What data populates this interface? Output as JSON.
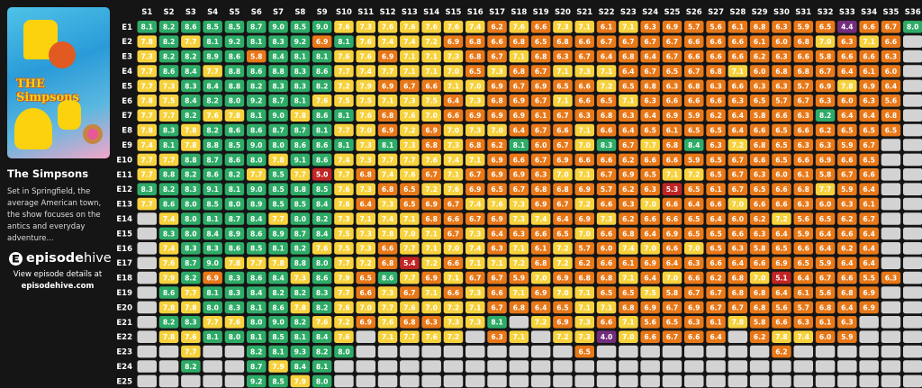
{
  "show": {
    "title": "The Simpsons",
    "description": "Set in Springfield, the average American town, the show focuses on the antics and everyday adventure...",
    "poster_logo": "THE Simpsons"
  },
  "brand": {
    "part1": "episode",
    "part2": "hive",
    "cta_line1": "View episode details at",
    "cta_line2": "episodehive.com"
  },
  "colors": {
    "green": "#2eab67",
    "yellow": "#f7d23d",
    "orange": "#e87818",
    "red": "#c22525",
    "purple": "#742d7d",
    "empty": "#d3d3d3",
    "background": "#151515"
  },
  "chart_data": {
    "type": "heatmap",
    "x_labels": [
      "S1",
      "S2",
      "S3",
      "S4",
      "S5",
      "S6",
      "S7",
      "S8",
      "S9",
      "S10",
      "S11",
      "S12",
      "S13",
      "S14",
      "S15",
      "S16",
      "S17",
      "S18",
      "S19",
      "S20",
      "S21",
      "S22",
      "S23",
      "S24",
      "S25",
      "S26",
      "S27",
      "S28",
      "S29",
      "S30",
      "S31",
      "S32",
      "S33",
      "S34",
      "S35",
      "S36"
    ],
    "y_labels": [
      "E1",
      "E2",
      "E3",
      "E4",
      "E5",
      "E6",
      "E7",
      "E8",
      "E9",
      "E10",
      "E11",
      "E12",
      "E13",
      "E14",
      "E15",
      "E16",
      "E17",
      "E18",
      "E19",
      "E20",
      "E21",
      "E22",
      "E23",
      "E24",
      "E25"
    ],
    "matrix": [
      [
        8.1,
        8.2,
        8.6,
        8.5,
        8.5,
        8.7,
        9.0,
        8.5,
        9.0,
        7.6,
        7.3,
        7.6,
        7.6,
        7.6,
        7.6,
        7.4,
        6.2,
        7.6,
        6.6,
        7.3,
        7.1,
        6.1,
        7.1,
        6.3,
        6.9,
        5.7,
        5.6,
        6.1,
        6.8,
        6.3,
        5.9,
        6.5,
        4.4,
        6.6,
        6.7,
        8.0
      ],
      [
        7.8,
        8.2,
        7.7,
        8.1,
        9.2,
        8.1,
        8.3,
        9.2,
        6.9,
        8.1,
        7.6,
        7.4,
        7.4,
        7.2,
        6.9,
        6.8,
        6.6,
        6.8,
        6.5,
        6.8,
        6.6,
        6.7,
        6.7,
        6.7,
        6.7,
        6.6,
        6.6,
        6.6,
        6.1,
        6.0,
        6.8,
        7.0,
        6.3,
        7.1,
        6.6,
        null
      ],
      [
        7.3,
        8.2,
        8.2,
        8.9,
        8.6,
        5.8,
        8.4,
        8.1,
        8.1,
        7.6,
        7.6,
        6.9,
        7.1,
        7.1,
        7.3,
        6.8,
        6.7,
        7.1,
        6.8,
        6.3,
        6.7,
        6.4,
        6.8,
        6.4,
        6.7,
        6.6,
        6.6,
        6.6,
        6.2,
        6.3,
        6.6,
        5.8,
        6.6,
        6.6,
        6.3,
        null
      ],
      [
        7.7,
        8.6,
        8.4,
        7.7,
        8.8,
        8.6,
        8.8,
        8.3,
        8.6,
        7.7,
        7.4,
        7.7,
        7.1,
        7.1,
        7.0,
        6.5,
        7.3,
        6.8,
        6.7,
        7.1,
        7.3,
        7.1,
        6.4,
        6.7,
        6.5,
        6.7,
        6.8,
        7.1,
        6.0,
        6.8,
        6.8,
        6.7,
        6.4,
        6.1,
        6.0,
        null
      ],
      [
        7.7,
        7.3,
        8.3,
        8.4,
        8.8,
        8.2,
        8.3,
        8.3,
        8.2,
        7.2,
        7.9,
        6.9,
        6.7,
        6.6,
        7.1,
        7.0,
        6.9,
        6.7,
        6.9,
        6.5,
        6.6,
        7.2,
        6.5,
        6.8,
        6.3,
        6.8,
        6.3,
        6.6,
        6.3,
        6.3,
        5.7,
        6.9,
        7.8,
        6.9,
        6.4,
        null
      ],
      [
        7.8,
        7.5,
        8.4,
        8.2,
        8.0,
        9.2,
        8.7,
        8.1,
        7.6,
        7.5,
        7.5,
        7.1,
        7.3,
        7.5,
        6.4,
        7.3,
        6.8,
        6.9,
        6.7,
        7.1,
        6.6,
        6.5,
        7.1,
        6.3,
        6.6,
        6.6,
        6.6,
        6.3,
        6.5,
        5.7,
        6.7,
        6.3,
        6.0,
        6.3,
        5.6,
        null
      ],
      [
        7.7,
        7.7,
        8.2,
        7.6,
        7.8,
        8.1,
        9.0,
        7.8,
        8.6,
        8.1,
        7.6,
        6.8,
        7.6,
        7.0,
        6.6,
        6.9,
        6.9,
        6.9,
        6.1,
        6.7,
        6.3,
        6.8,
        6.3,
        6.4,
        6.9,
        5.9,
        6.2,
        6.4,
        5.8,
        6.6,
        6.3,
        8.2,
        6.4,
        6.4,
        6.8,
        null
      ],
      [
        7.8,
        8.3,
        7.8,
        8.2,
        8.6,
        8.6,
        8.7,
        8.7,
        8.1,
        7.7,
        7.0,
        6.9,
        7.2,
        6.9,
        7.0,
        7.3,
        7.0,
        6.4,
        6.7,
        6.6,
        7.1,
        6.6,
        6.4,
        6.5,
        6.1,
        6.5,
        6.5,
        6.4,
        6.6,
        6.5,
        6.6,
        6.2,
        6.5,
        6.5,
        6.5,
        null
      ],
      [
        7.4,
        8.1,
        7.8,
        8.8,
        8.5,
        9.0,
        8.0,
        8.6,
        8.6,
        8.1,
        7.3,
        8.1,
        7.3,
        6.8,
        7.3,
        6.8,
        6.2,
        8.1,
        6.0,
        6.7,
        7.0,
        8.3,
        6.7,
        7.7,
        6.8,
        8.4,
        6.3,
        7.2,
        6.8,
        6.5,
        6.3,
        6.3,
        5.9,
        6.7,
        null,
        null
      ],
      [
        7.7,
        7.7,
        8.8,
        8.7,
        8.6,
        8.0,
        7.8,
        9.1,
        8.6,
        7.4,
        7.3,
        7.7,
        7.7,
        7.6,
        7.4,
        7.1,
        6.9,
        6.6,
        6.7,
        6.9,
        6.6,
        6.6,
        6.2,
        6.6,
        6.6,
        5.9,
        6.5,
        6.7,
        6.6,
        6.5,
        6.6,
        6.9,
        6.6,
        6.5,
        null,
        null
      ],
      [
        7.7,
        8.8,
        8.2,
        8.6,
        8.2,
        7.7,
        8.5,
        7.7,
        5.0,
        7.7,
        6.8,
        7.4,
        7.6,
        6.7,
        7.1,
        6.7,
        6.9,
        6.9,
        6.3,
        7.0,
        7.1,
        6.7,
        6.9,
        6.5,
        7.1,
        7.2,
        6.5,
        6.7,
        6.3,
        6.0,
        6.1,
        5.8,
        6.7,
        6.6,
        null,
        null
      ],
      [
        8.3,
        8.2,
        8.3,
        9.1,
        8.1,
        9.0,
        8.5,
        8.8,
        8.5,
        7.6,
        7.3,
        6.8,
        6.5,
        7.2,
        7.6,
        6.9,
        6.5,
        6.7,
        6.8,
        6.8,
        6.9,
        5.7,
        6.2,
        6.3,
        5.3,
        6.5,
        6.1,
        6.7,
        6.5,
        6.6,
        6.8,
        7.7,
        5.9,
        6.4,
        null,
        null
      ],
      [
        7.7,
        8.6,
        8.0,
        8.5,
        8.0,
        8.9,
        8.5,
        8.5,
        8.4,
        7.6,
        6.4,
        7.3,
        6.5,
        6.9,
        6.7,
        7.4,
        7.6,
        7.3,
        6.9,
        6.7,
        7.2,
        6.6,
        6.3,
        7.0,
        6.6,
        6.4,
        6.6,
        7.0,
        6.6,
        6.6,
        6.3,
        6.0,
        6.3,
        6.1,
        null,
        null
      ],
      [
        null,
        7.4,
        8.0,
        8.1,
        8.7,
        8.4,
        7.7,
        8.0,
        8.2,
        7.3,
        7.1,
        7.4,
        7.1,
        6.8,
        6.6,
        6.7,
        6.9,
        7.3,
        7.4,
        6.4,
        6.9,
        7.3,
        6.2,
        6.6,
        6.6,
        6.5,
        6.4,
        6.0,
        6.2,
        7.2,
        5.6,
        6.5,
        6.2,
        6.7,
        null,
        null
      ],
      [
        null,
        8.3,
        8.0,
        8.4,
        8.9,
        8.6,
        8.9,
        8.7,
        8.4,
        7.5,
        7.3,
        7.8,
        7.0,
        7.1,
        6.7,
        7.3,
        6.4,
        6.3,
        6.6,
        6.5,
        7.0,
        6.6,
        6.8,
        6.4,
        6.9,
        6.5,
        6.5,
        6.6,
        6.3,
        6.4,
        5.9,
        6.4,
        6.6,
        6.4,
        null,
        null
      ],
      [
        null,
        7.4,
        8.3,
        8.3,
        8.6,
        8.5,
        8.1,
        8.2,
        7.6,
        7.5,
        7.3,
        6.6,
        7.7,
        7.1,
        7.0,
        7.4,
        6.3,
        7.1,
        6.1,
        7.2,
        5.7,
        6.0,
        7.4,
        7.0,
        6.6,
        7.0,
        6.5,
        6.3,
        5.8,
        6.5,
        6.6,
        6.4,
        6.2,
        6.4,
        null,
        null
      ],
      [
        null,
        7.6,
        8.7,
        9.0,
        7.8,
        7.7,
        7.8,
        8.8,
        8.0,
        7.7,
        7.2,
        6.8,
        5.4,
        7.2,
        6.6,
        7.1,
        7.1,
        7.2,
        6.8,
        7.2,
        6.2,
        6.6,
        6.1,
        6.9,
        6.4,
        6.3,
        6.6,
        6.4,
        6.6,
        6.9,
        6.5,
        5.9,
        6.4,
        6.4,
        null,
        null
      ],
      [
        null,
        7.9,
        8.2,
        6.9,
        8.3,
        8.6,
        8.4,
        7.3,
        8.6,
        7.9,
        6.5,
        8.6,
        7.7,
        6.9,
        7.1,
        6.7,
        6.7,
        5.9,
        7.0,
        6.9,
        6.8,
        6.8,
        7.1,
        6.4,
        7.0,
        6.6,
        6.2,
        6.8,
        7.0,
        5.1,
        6.4,
        6.7,
        6.6,
        5.5,
        6.3,
        null
      ],
      [
        null,
        8.6,
        7.7,
        8.1,
        8.3,
        8.4,
        8.2,
        8.2,
        8.3,
        7.7,
        6.6,
        7.3,
        6.7,
        7.1,
        6.6,
        7.3,
        6.6,
        7.1,
        6.9,
        7.0,
        7.1,
        6.5,
        6.5,
        7.5,
        5.8,
        6.7,
        6.7,
        6.8,
        6.8,
        6.4,
        6.1,
        5.6,
        6.8,
        6.9,
        null,
        null
      ],
      [
        null,
        7.8,
        7.8,
        8.0,
        8.3,
        8.1,
        8.6,
        7.8,
        8.2,
        7.6,
        7.0,
        7.7,
        7.6,
        7.0,
        7.2,
        7.1,
        6.7,
        6.8,
        6.4,
        6.5,
        7.1,
        7.1,
        6.8,
        6.9,
        6.7,
        6.9,
        6.7,
        6.7,
        6.8,
        5.6,
        5.7,
        6.8,
        6.4,
        6.9,
        null,
        null
      ],
      [
        null,
        8.2,
        8.3,
        7.7,
        7.6,
        8.0,
        9.0,
        8.2,
        7.6,
        7.2,
        6.9,
        7.6,
        6.8,
        6.3,
        7.3,
        7.3,
        8.1,
        null,
        7.2,
        6.9,
        7.3,
        6.6,
        7.1,
        5.6,
        6.5,
        6.3,
        6.1,
        7.8,
        5.8,
        6.6,
        6.3,
        6.1,
        6.3,
        null,
        null,
        null
      ],
      [
        null,
        7.8,
        7.6,
        8.1,
        8.0,
        8.1,
        8.5,
        8.1,
        8.4,
        7.6,
        null,
        7.1,
        7.7,
        7.6,
        7.2,
        null,
        6.3,
        7.1,
        null,
        7.2,
        7.3,
        4.0,
        7.0,
        6.6,
        6.7,
        6.6,
        6.4,
        null,
        6.2,
        7.8,
        7.4,
        6.0,
        5.9,
        null,
        null,
        null
      ],
      [
        null,
        null,
        7.7,
        null,
        null,
        8.2,
        8.1,
        9.3,
        8.2,
        8.0,
        null,
        null,
        null,
        null,
        null,
        null,
        null,
        null,
        null,
        null,
        6.5,
        null,
        null,
        null,
        null,
        null,
        null,
        null,
        null,
        6.2,
        null,
        null,
        null,
        null,
        null,
        null
      ],
      [
        null,
        null,
        8.2,
        null,
        null,
        8.7,
        7.9,
        8.4,
        8.1,
        null,
        null,
        null,
        null,
        null,
        null,
        null,
        null,
        null,
        null,
        null,
        null,
        null,
        null,
        null,
        null,
        null,
        null,
        null,
        null,
        null,
        null,
        null,
        null,
        null,
        null,
        null
      ],
      [
        null,
        null,
        null,
        null,
        null,
        9.2,
        8.5,
        7.9,
        8.0,
        null,
        null,
        null,
        null,
        null,
        null,
        null,
        null,
        null,
        null,
        null,
        null,
        null,
        null,
        null,
        null,
        null,
        null,
        null,
        null,
        null,
        null,
        null,
        null,
        null,
        null,
        null
      ]
    ]
  }
}
